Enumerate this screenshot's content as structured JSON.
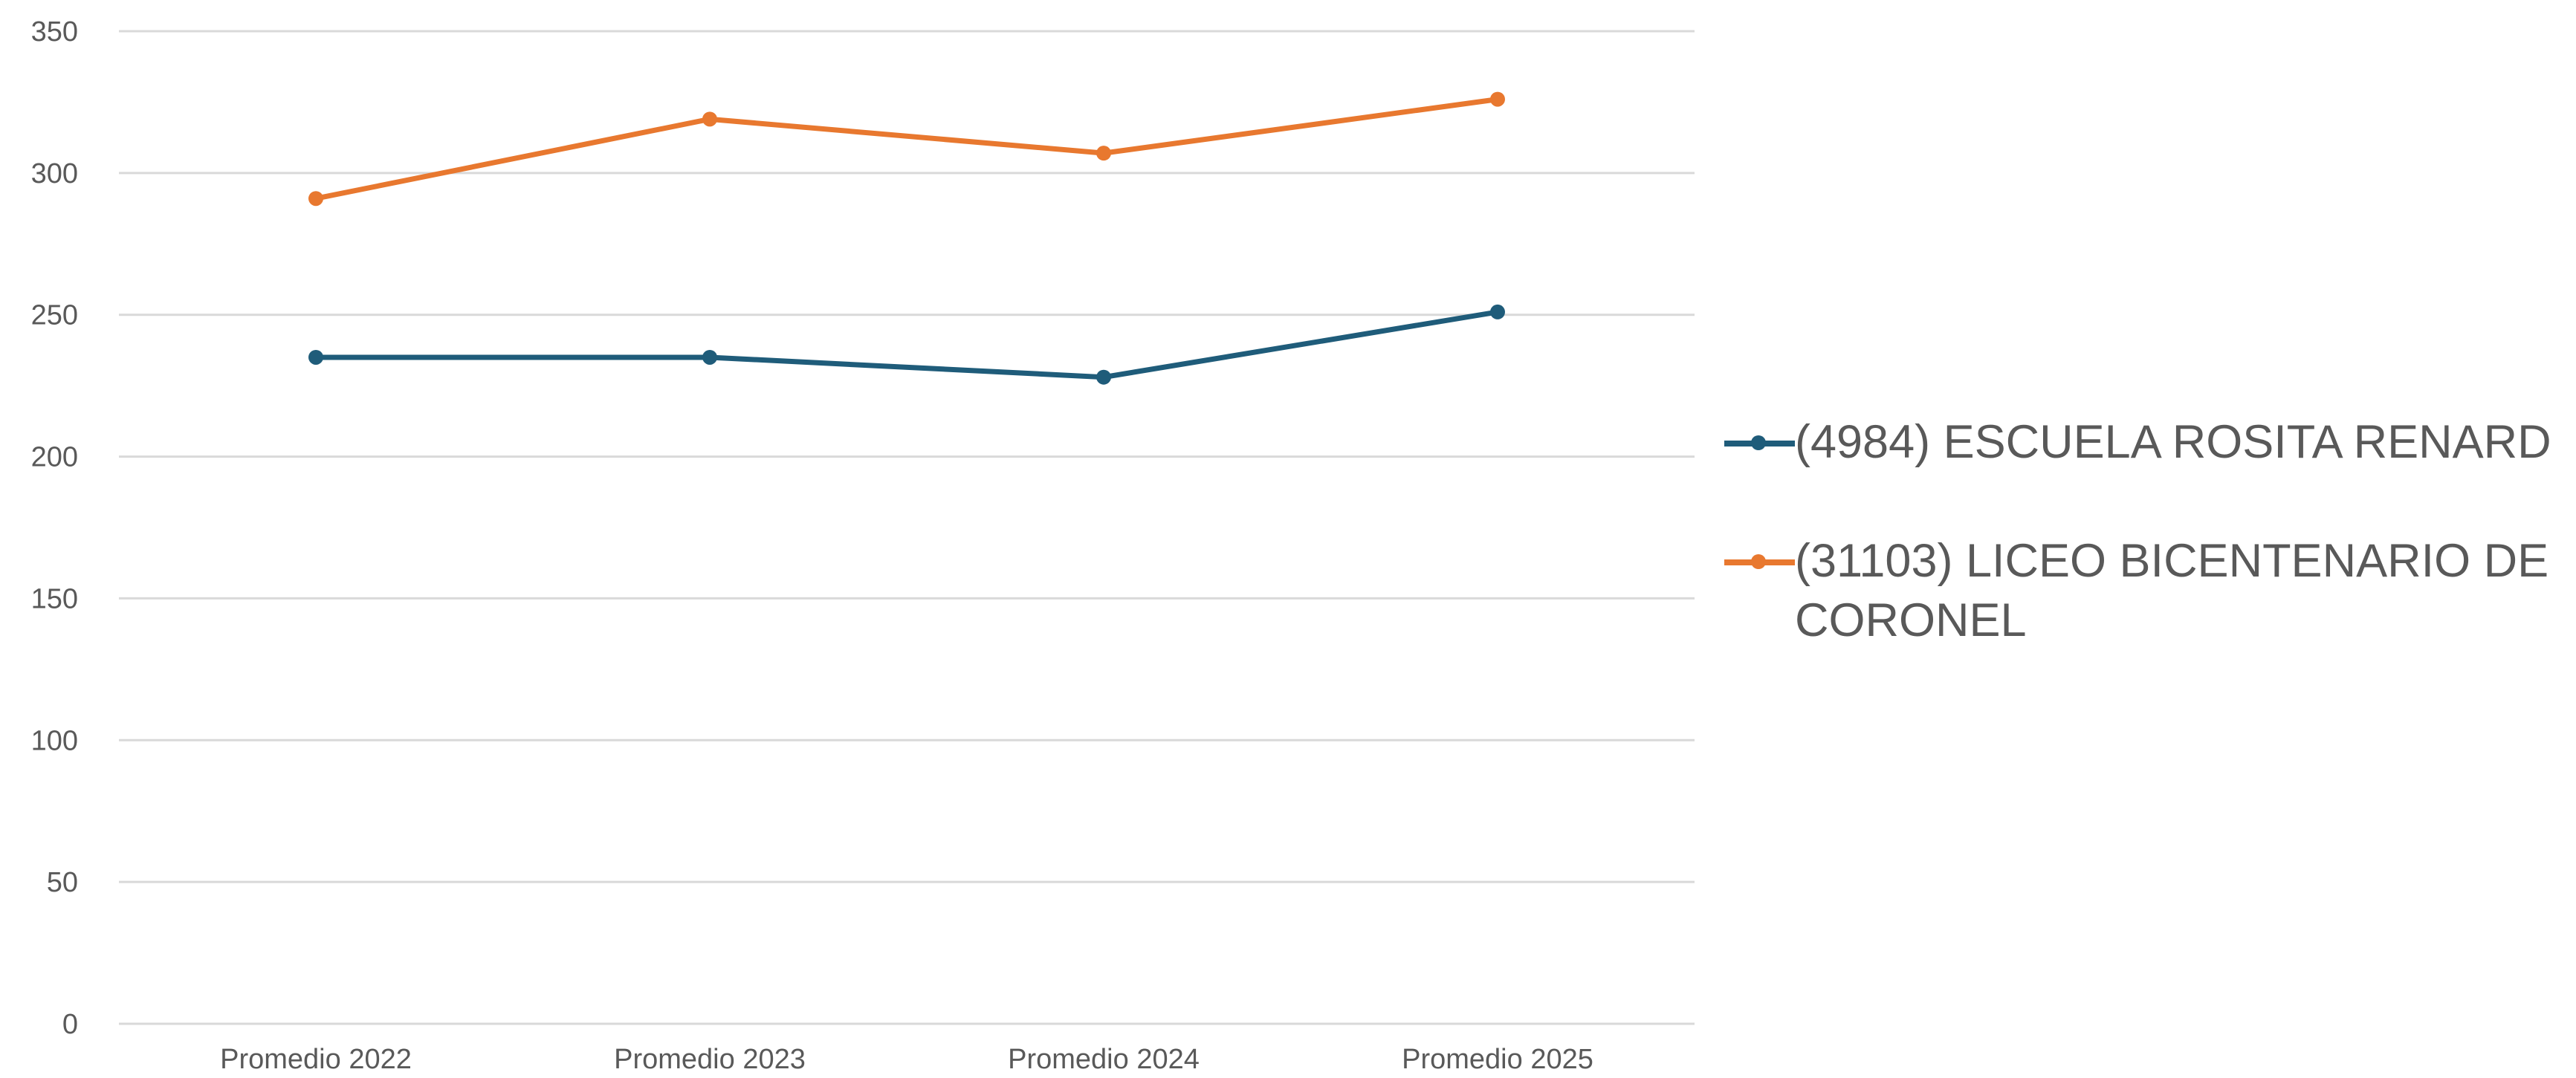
{
  "chart_data": {
    "type": "line",
    "categories": [
      "Promedio 2022",
      "Promedio 2023",
      "Promedio 2024",
      "Promedio 2025"
    ],
    "series": [
      {
        "name": "(4984) ESCUELA ROSITA RENARD",
        "values": [
          235,
          235,
          228,
          251
        ],
        "color": "#1f5c7a"
      },
      {
        "name": "(31103) LICEO BICENTENARIO DE CORONEL",
        "values": [
          291,
          319,
          307,
          326
        ],
        "color": "#e8782f"
      }
    ],
    "yticks": [
      0,
      50,
      100,
      150,
      200,
      250,
      300,
      350
    ],
    "ylim": [
      0,
      350
    ],
    "grid": true,
    "legend_position": "right",
    "title": "",
    "xlabel": "",
    "ylabel": ""
  }
}
